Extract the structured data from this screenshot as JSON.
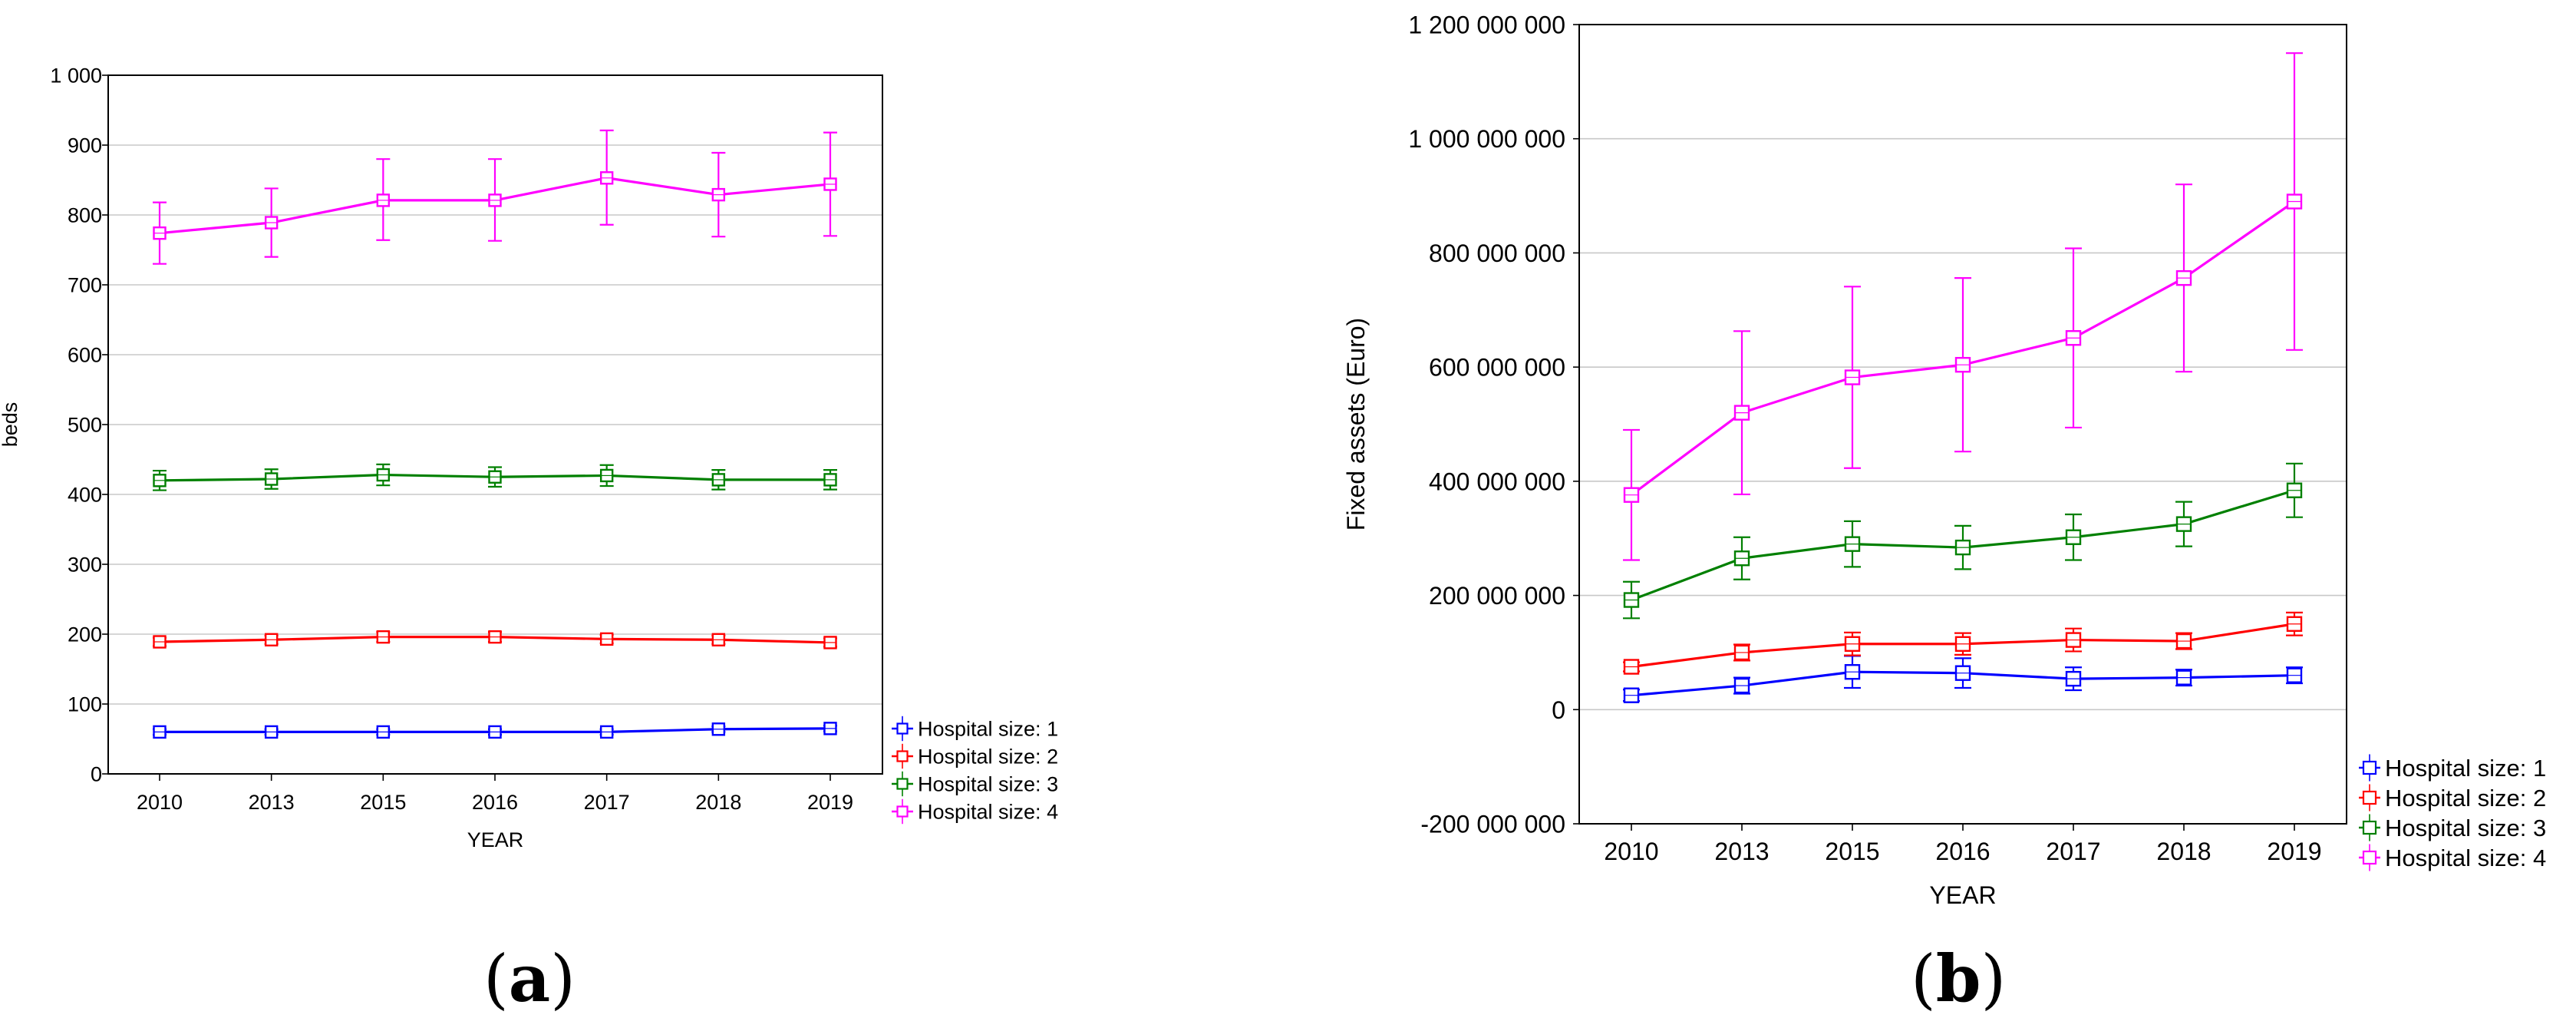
{
  "chart_data": [
    {
      "type": "line",
      "panel_label": "a",
      "xlabel": "YEAR",
      "ylabel": "beds",
      "categories": [
        "2010",
        "2013",
        "2015",
        "2016",
        "2017",
        "2018",
        "2019"
      ],
      "ylim": [
        0,
        1000
      ],
      "yticks": [
        0,
        100,
        200,
        300,
        400,
        500,
        600,
        700,
        800,
        900,
        1000
      ],
      "ytick_labels": [
        "0",
        "100",
        "200",
        "300",
        "400",
        "500",
        "600",
        "700",
        "800",
        "900",
        "1 000"
      ],
      "grid": true,
      "error_bars": true,
      "legend_position": "bottom-right-outside",
      "series": [
        {
          "name": "Hospital size: 1",
          "color": "#0000ff",
          "values": [
            60,
            60,
            60,
            60,
            60,
            64,
            65
          ],
          "err_low": [
            56,
            56,
            56,
            56,
            56,
            60,
            61
          ],
          "err_high": [
            64,
            64,
            64,
            64,
            64,
            68,
            69
          ]
        },
        {
          "name": "Hospital size: 2",
          "color": "#ff0000",
          "values": [
            189,
            192,
            196,
            196,
            193,
            192,
            188
          ],
          "err_low": [
            183,
            186,
            189,
            189,
            187,
            186,
            182
          ],
          "err_high": [
            195,
            198,
            203,
            203,
            199,
            198,
            194
          ]
        },
        {
          "name": "Hospital size: 3",
          "color": "#008000",
          "values": [
            420,
            422,
            428,
            425,
            427,
            421,
            421
          ],
          "err_low": [
            406,
            408,
            413,
            411,
            412,
            407,
            407
          ],
          "err_high": [
            434,
            436,
            443,
            439,
            442,
            435,
            435
          ]
        },
        {
          "name": "Hospital size: 4",
          "color": "#ff00ff",
          "values": [
            774,
            789,
            821,
            821,
            853,
            829,
            844
          ],
          "err_low": [
            730,
            740,
            764,
            763,
            786,
            769,
            770
          ],
          "err_high": [
            818,
            838,
            880,
            880,
            921,
            889,
            918
          ]
        }
      ]
    },
    {
      "type": "line",
      "panel_label": "b",
      "xlabel": "YEAR",
      "ylabel": "Fixed assets (Euro)",
      "categories": [
        "2010",
        "2013",
        "2015",
        "2016",
        "2017",
        "2018",
        "2019"
      ],
      "ylim": [
        -200000000,
        1200000000
      ],
      "yticks": [
        -200000000,
        0,
        200000000,
        400000000,
        600000000,
        800000000,
        1000000000,
        1200000000
      ],
      "ytick_labels": [
        "-200 000 000",
        "0",
        "200 000 000",
        "400 000 000",
        "600 000 000",
        "800 000 000",
        "1 000 000 000",
        "1 200 000 000"
      ],
      "grid": true,
      "error_bars": true,
      "legend_position": "bottom-right-outside",
      "series": [
        {
          "name": "Hospital size: 1",
          "color": "#0000ff",
          "values": [
            25000000,
            42000000,
            66000000,
            64000000,
            54000000,
            56000000,
            60000000
          ],
          "err_low": [
            15000000,
            28000000,
            38000000,
            38000000,
            34000000,
            42000000,
            46000000
          ],
          "err_high": [
            35000000,
            56000000,
            94000000,
            90000000,
            74000000,
            70000000,
            74000000
          ]
        },
        {
          "name": "Hospital size: 2",
          "color": "#ff0000",
          "values": [
            75000000,
            100000000,
            115000000,
            115000000,
            122000000,
            120000000,
            150000000
          ],
          "err_low": [
            67000000,
            86000000,
            95000000,
            96000000,
            102000000,
            106000000,
            130000000
          ],
          "err_high": [
            83000000,
            114000000,
            135000000,
            134000000,
            142000000,
            134000000,
            170000000
          ]
        },
        {
          "name": "Hospital size: 3",
          "color": "#008000",
          "values": [
            192000000,
            265000000,
            290000000,
            284000000,
            302000000,
            325000000,
            384000000
          ],
          "err_low": [
            160000000,
            228000000,
            250000000,
            246000000,
            262000000,
            286000000,
            337000000
          ],
          "err_high": [
            224000000,
            302000000,
            330000000,
            322000000,
            342000000,
            364000000,
            431000000
          ]
        },
        {
          "name": "Hospital size: 4",
          "color": "#ff00ff",
          "values": [
            376000000,
            520000000,
            582000000,
            604000000,
            651000000,
            756000000,
            890000000
          ],
          "err_low": [
            262000000,
            377000000,
            423000000,
            452000000,
            494000000,
            592000000,
            630000000
          ],
          "err_high": [
            490000000,
            663000000,
            741000000,
            756000000,
            808000000,
            920000000,
            1150000000
          ]
        }
      ]
    }
  ]
}
